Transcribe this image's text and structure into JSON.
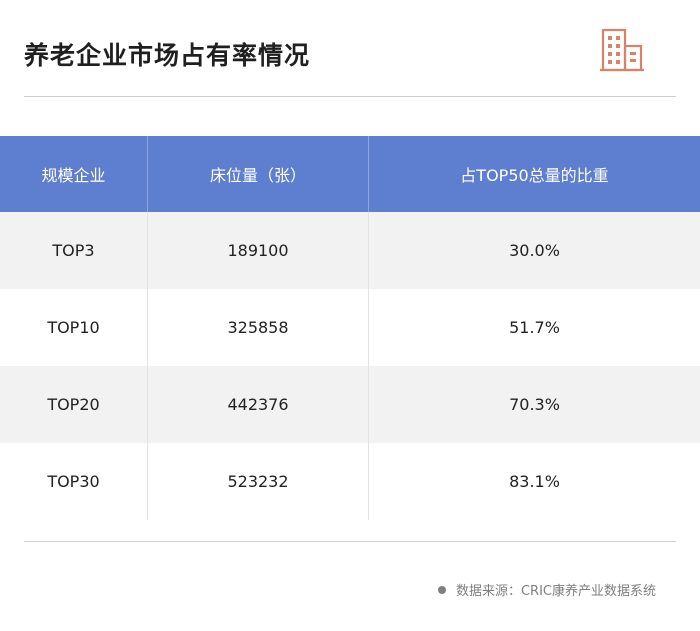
{
  "page": {
    "title": "养老企业市场占有率情况",
    "accent_color": "#5e7fcf",
    "icon": "building-icon"
  },
  "table": {
    "headers": [
      "规模企业",
      "床位量（张）",
      "占TOP50总量的比重"
    ],
    "rows": [
      {
        "tier": "TOP3",
        "beds": "189100",
        "share": "30.0%"
      },
      {
        "tier": "TOP10",
        "beds": "325858",
        "share": "51.7%"
      },
      {
        "tier": "TOP20",
        "beds": "442376",
        "share": "70.3%"
      },
      {
        "tier": "TOP30",
        "beds": "523232",
        "share": "83.1%"
      }
    ]
  },
  "footer": {
    "source": "数据来源：CRIC康养产业数据系统"
  }
}
